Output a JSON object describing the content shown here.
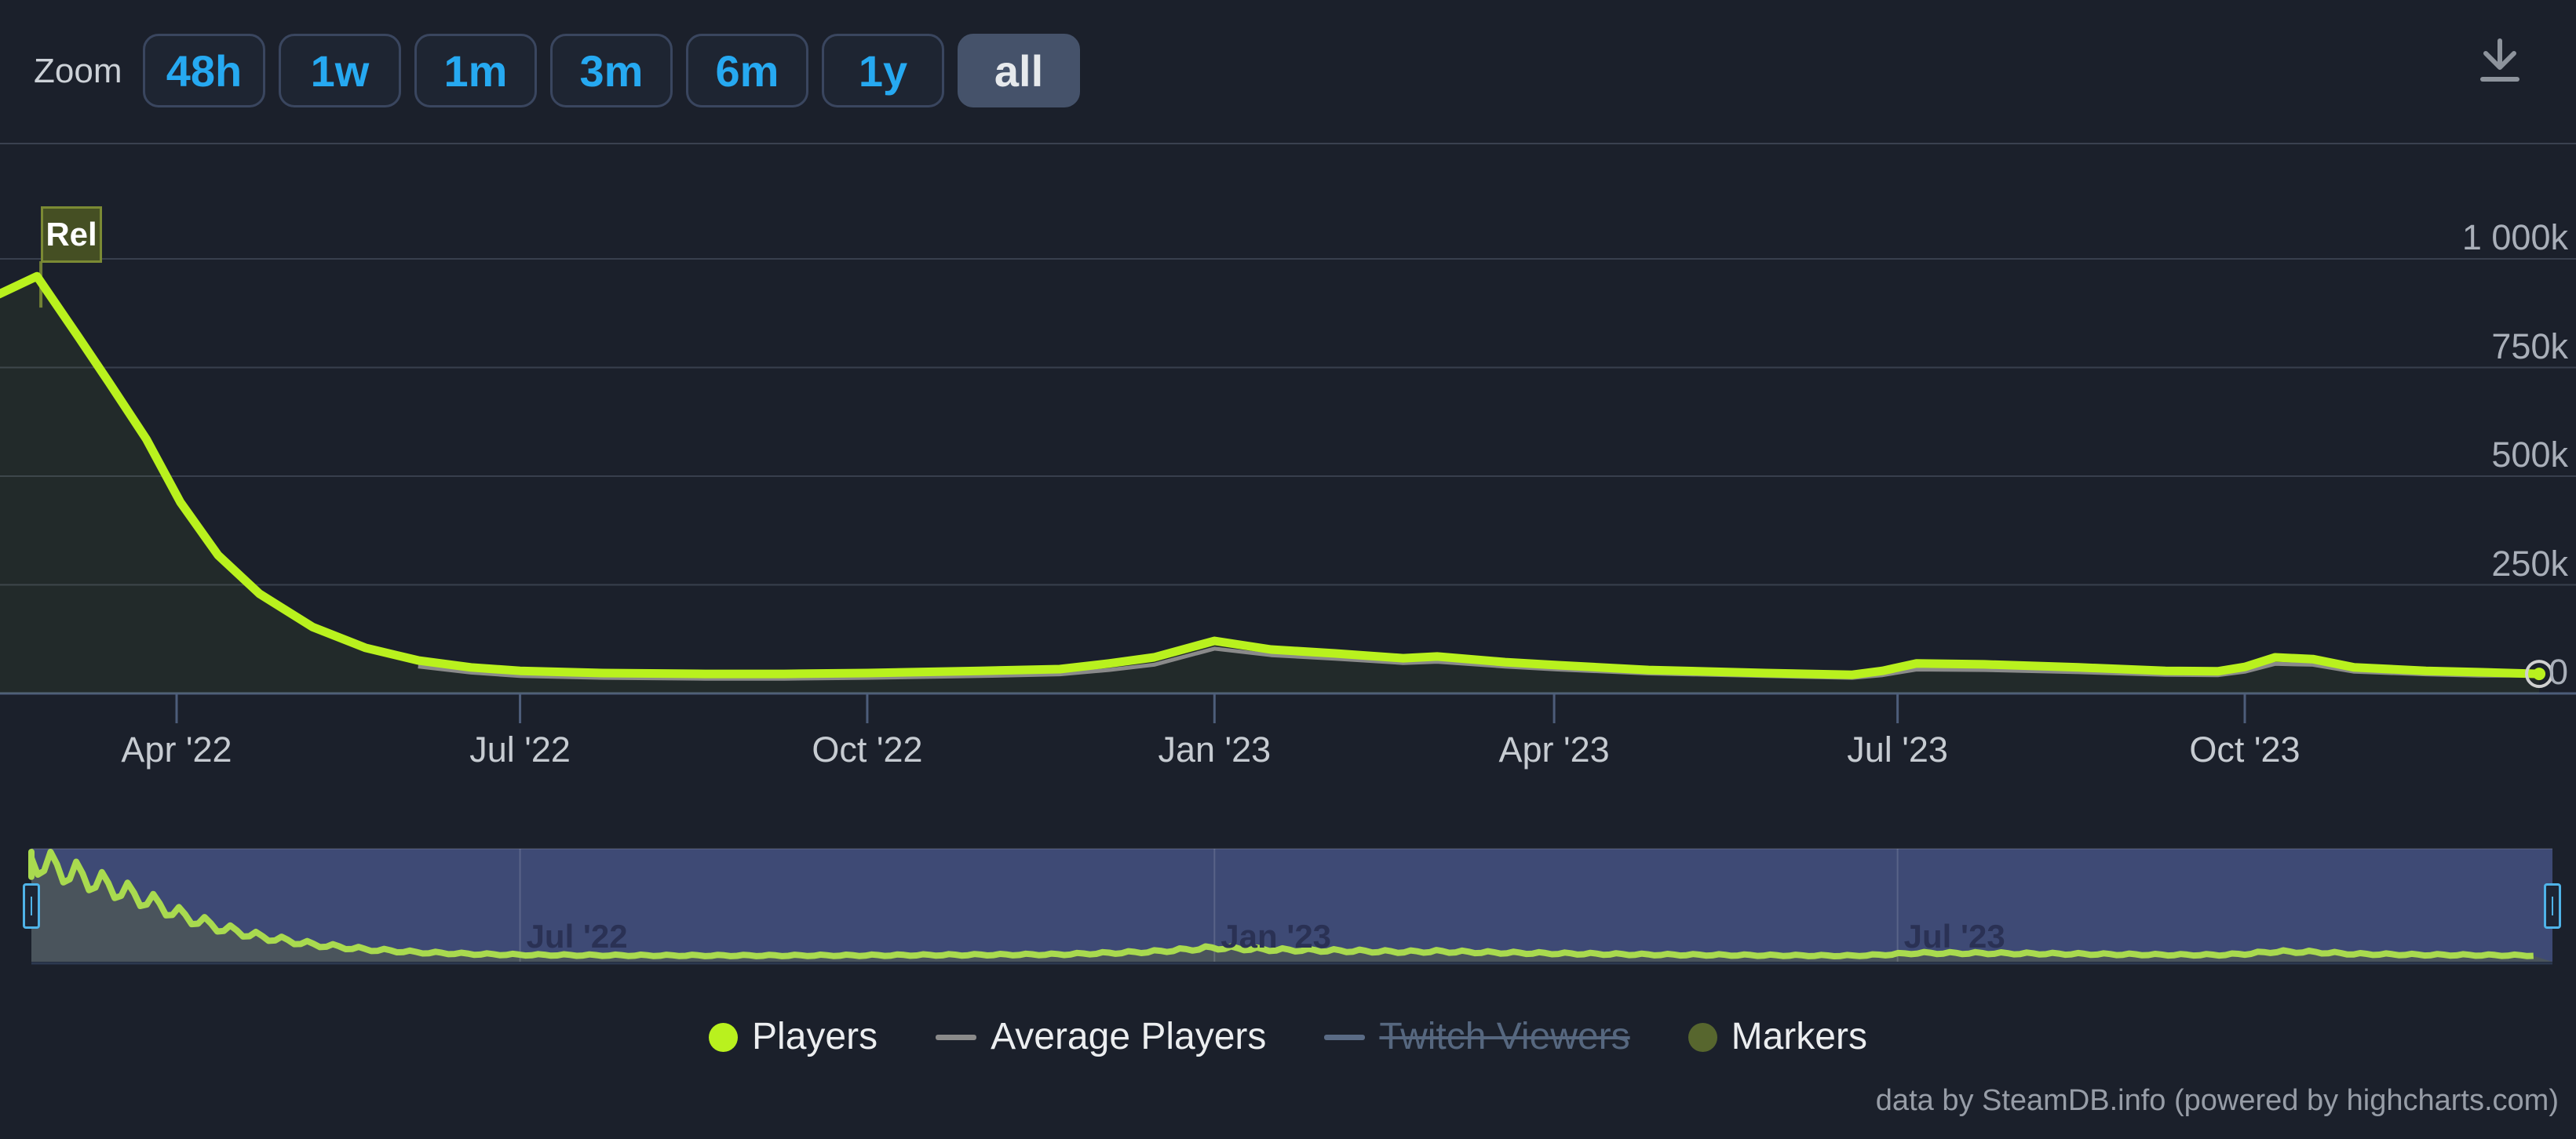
{
  "toolbar": {
    "zoom_label": "Zoom",
    "buttons": [
      {
        "label": "48h",
        "selected": false
      },
      {
        "label": "1w",
        "selected": false
      },
      {
        "label": "1m",
        "selected": false
      },
      {
        "label": "3m",
        "selected": false
      },
      {
        "label": "6m",
        "selected": false
      },
      {
        "label": "1y",
        "selected": false
      },
      {
        "label": "all",
        "selected": true
      }
    ],
    "download_icon": "arrow-down-to-line",
    "accent_blue": "#26a9f1",
    "selected_bg": "#45526a"
  },
  "flag": {
    "label": "Rel"
  },
  "credits": "data by SteamDB.info (powered by highcharts.com)",
  "legend": {
    "items": [
      {
        "label": "Players",
        "symbol": "circle",
        "color": "#b9f11e",
        "disabled": false
      },
      {
        "label": "Average Players",
        "symbol": "dash",
        "color": "#8a8a8a",
        "disabled": false
      },
      {
        "label": "Twitch Viewers",
        "symbol": "dash",
        "color": "#5a6b85",
        "disabled": true
      },
      {
        "label": "Markers",
        "symbol": "circle",
        "color": "#57662e",
        "disabled": false
      }
    ]
  },
  "chart_data": {
    "type": "line",
    "title": "",
    "grid": true,
    "legend_position": "bottom-center",
    "y_axis": {
      "side": "right",
      "tick_labels": [
        "1 000k",
        "750k",
        "500k",
        "250k",
        "0"
      ],
      "tick_values_k": [
        1000,
        750,
        500,
        250,
        0
      ],
      "range_k": [
        0,
        1100
      ]
    },
    "x_axis": {
      "unit": "date",
      "ticks": [
        {
          "day": 47,
          "label": "Apr '22"
        },
        {
          "day": 138,
          "label": "Jul '22"
        },
        {
          "day": 230,
          "label": "Oct '22"
        },
        {
          "day": 322,
          "label": "Jan '23"
        },
        {
          "day": 412,
          "label": "Apr '23"
        },
        {
          "day": 503,
          "label": "Jul '23"
        },
        {
          "day": 595,
          "label": "Oct '23"
        }
      ]
    },
    "series": [
      {
        "name": "Players",
        "color": "#b9f11e",
        "visible": true,
        "points_day_valuek": [
          [
            0,
            919
          ],
          [
            10,
            960
          ],
          [
            21,
            820
          ],
          [
            29,
            717
          ],
          [
            39,
            585
          ],
          [
            48,
            440
          ],
          [
            58,
            318
          ],
          [
            69,
            229
          ],
          [
            83,
            153
          ],
          [
            97,
            105
          ],
          [
            111,
            76
          ],
          [
            125,
            60
          ],
          [
            138,
            52
          ],
          [
            160,
            47
          ],
          [
            187,
            45
          ],
          [
            208,
            45
          ],
          [
            230,
            47
          ],
          [
            260,
            52
          ],
          [
            281,
            56
          ],
          [
            294,
            69
          ],
          [
            306,
            83
          ],
          [
            322,
            121
          ],
          [
            337,
            101
          ],
          [
            354,
            92
          ],
          [
            372,
            81
          ],
          [
            381,
            85
          ],
          [
            399,
            72
          ],
          [
            413,
            65
          ],
          [
            437,
            54
          ],
          [
            468,
            47
          ],
          [
            491,
            43
          ],
          [
            499,
            52
          ],
          [
            508,
            69
          ],
          [
            526,
            67
          ],
          [
            551,
            60
          ],
          [
            574,
            52
          ],
          [
            588,
            51
          ],
          [
            595,
            61
          ],
          [
            603,
            83
          ],
          [
            613,
            79
          ],
          [
            624,
            60
          ],
          [
            643,
            52
          ],
          [
            657,
            49
          ],
          [
            673,
            45
          ]
        ],
        "last_point_marker": true
      },
      {
        "name": "Average Players",
        "color": "#8a8a8a",
        "visible": true,
        "points_day_valuek": [
          [
            111,
            62
          ],
          [
            125,
            48
          ],
          [
            138,
            40
          ],
          [
            160,
            36
          ],
          [
            187,
            34
          ],
          [
            208,
            34
          ],
          [
            230,
            36
          ],
          [
            260,
            40
          ],
          [
            281,
            44
          ],
          [
            294,
            54
          ],
          [
            306,
            66
          ],
          [
            322,
            103
          ],
          [
            337,
            88
          ],
          [
            354,
            80
          ],
          [
            372,
            70
          ],
          [
            381,
            73
          ],
          [
            399,
            62
          ],
          [
            413,
            55
          ],
          [
            437,
            46
          ],
          [
            468,
            40
          ],
          [
            491,
            36
          ],
          [
            499,
            42
          ],
          [
            508,
            55
          ],
          [
            526,
            54
          ],
          [
            551,
            49
          ],
          [
            574,
            43
          ],
          [
            588,
            42
          ],
          [
            595,
            50
          ],
          [
            603,
            68
          ],
          [
            613,
            66
          ],
          [
            624,
            50
          ],
          [
            643,
            44
          ],
          [
            657,
            41
          ],
          [
            673,
            41
          ]
        ]
      },
      {
        "name": "Twitch Viewers",
        "color": "#5a6b85",
        "visible": false,
        "points_day_valuek": []
      },
      {
        "name": "Markers",
        "color": "#57662e",
        "visible": true,
        "flags": [
          {
            "label": "Rel",
            "day": 10
          }
        ]
      }
    ],
    "navigator": {
      "range_selected": "all",
      "tick_labels": [
        {
          "day": 138,
          "label": "Jul '22"
        },
        {
          "day": 322,
          "label": "Jan '23"
        },
        {
          "day": 503,
          "label": "Jul '23"
        }
      ],
      "mask_color": "#3e4a75",
      "underfill_color": "#4a545c",
      "line_color": "#a9da4f"
    }
  }
}
